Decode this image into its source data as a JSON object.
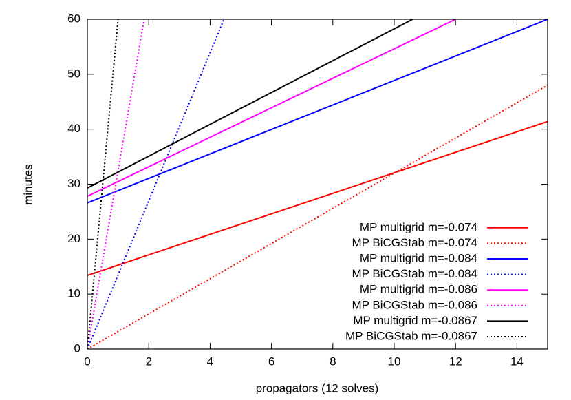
{
  "chart_data": {
    "type": "line",
    "x_label": "propagators (12 solves)",
    "y_label": "minutes",
    "xlim": [
      0,
      15
    ],
    "ylim": [
      0,
      60
    ],
    "xticks": [
      0,
      2,
      4,
      6,
      8,
      10,
      12,
      14
    ],
    "yticks": [
      0,
      10,
      20,
      30,
      40,
      50,
      60
    ],
    "legend": "lower right",
    "series": [
      {
        "name": "MP multigrid m=-0.074",
        "color": "#ff0000",
        "dash": false,
        "x": [
          0,
          15
        ],
        "values": [
          13.4,
          41.4
        ]
      },
      {
        "name": "MP BiCGStab m=-0.074",
        "color": "#ff0000",
        "dash": true,
        "x": [
          0,
          15
        ],
        "values": [
          0,
          48
        ]
      },
      {
        "name": "MP multigrid m=-0.084",
        "color": "#0000ff",
        "dash": false,
        "x": [
          0,
          15
        ],
        "values": [
          26.6,
          60
        ]
      },
      {
        "name": "MP BiCGStab m=-0.084",
        "color": "#0000ff",
        "dash": true,
        "x": [
          0,
          4.45
        ],
        "values": [
          0,
          60
        ]
      },
      {
        "name": "MP multigrid m=-0.086",
        "color": "#ff00ff",
        "dash": false,
        "x": [
          0,
          12
        ],
        "values": [
          27.8,
          60
        ]
      },
      {
        "name": "MP BiCGStab m=-0.086",
        "color": "#ff00ff",
        "dash": true,
        "x": [
          0,
          1.85
        ],
        "values": [
          0,
          60
        ]
      },
      {
        "name": "MP multigrid m=-0.0867",
        "color": "#000000",
        "dash": false,
        "x": [
          0,
          10.6
        ],
        "values": [
          29.3,
          60
        ]
      },
      {
        "name": "MP BiCGStab m=-0.0867",
        "color": "#000000",
        "dash": true,
        "x": [
          0,
          1.0
        ],
        "values": [
          0,
          60
        ]
      }
    ]
  }
}
